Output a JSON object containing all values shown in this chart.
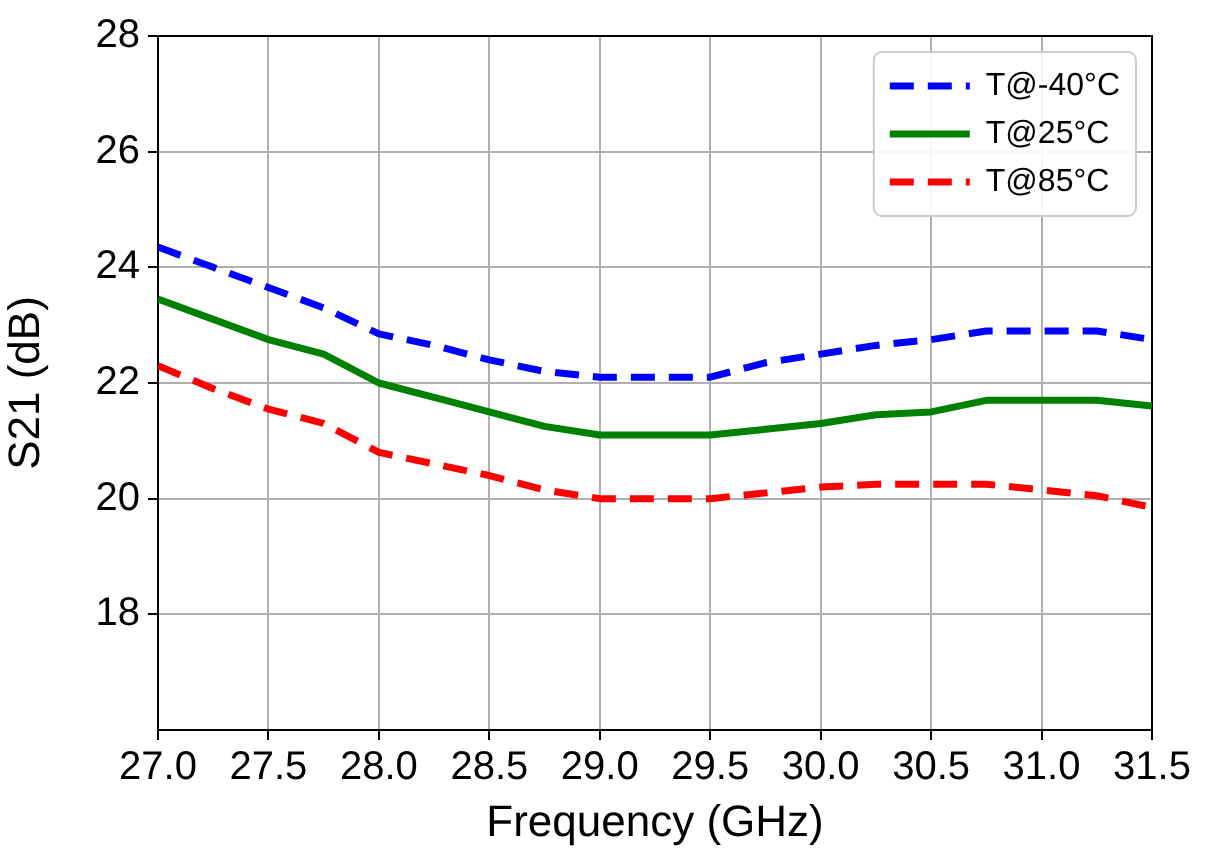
{
  "chart_data": {
    "type": "line",
    "xlabel": "Frequency (GHz)",
    "ylabel": "S21 (dB)",
    "x": [
      27.0,
      27.25,
      27.5,
      27.75,
      28.0,
      28.25,
      28.5,
      28.75,
      29.0,
      29.25,
      29.5,
      29.75,
      30.0,
      30.25,
      30.5,
      30.75,
      31.0,
      31.25,
      31.5
    ],
    "series": [
      {
        "name": "T@-40°C",
        "color": "#0000ff",
        "line_style": "dashed",
        "values": [
          24.35,
          24.0,
          23.65,
          23.3,
          22.85,
          22.65,
          22.4,
          22.2,
          22.1,
          22.1,
          22.1,
          22.35,
          22.5,
          22.65,
          22.75,
          22.9,
          22.9,
          22.9,
          22.75
        ]
      },
      {
        "name": "T@25°C",
        "color": "#008000",
        "line_style": "solid",
        "values": [
          23.45,
          23.1,
          22.75,
          22.5,
          22.0,
          21.75,
          21.5,
          21.25,
          21.1,
          21.1,
          21.1,
          21.2,
          21.3,
          21.45,
          21.5,
          21.7,
          21.7,
          21.7,
          21.6
        ]
      },
      {
        "name": "T@85°C",
        "color": "#ff0000",
        "line_style": "dashed",
        "values": [
          22.3,
          21.9,
          21.55,
          21.3,
          20.8,
          20.6,
          20.4,
          20.15,
          20.0,
          20.0,
          20.0,
          20.1,
          20.2,
          20.25,
          20.25,
          20.25,
          20.15,
          20.05,
          19.85
        ]
      }
    ],
    "xlim": [
      27.0,
      31.5
    ],
    "xticks": [
      {
        "value": 27.0,
        "label": "27.0"
      },
      {
        "value": 27.5,
        "label": "27.5"
      },
      {
        "value": 28.0,
        "label": "28.0"
      },
      {
        "value": 28.5,
        "label": "28.5"
      },
      {
        "value": 29.0,
        "label": "29.0"
      },
      {
        "value": 29.5,
        "label": "29.5"
      },
      {
        "value": 30.0,
        "label": "30.0"
      },
      {
        "value": 30.5,
        "label": "30.5"
      },
      {
        "value": 31.0,
        "label": "31.0"
      },
      {
        "value": 31.5,
        "label": "31.5"
      }
    ],
    "ylim": [
      16,
      28
    ],
    "yticks": [
      18,
      20,
      22,
      24,
      26,
      28
    ],
    "grid": true,
    "legend": "top right",
    "marker": "none"
  }
}
